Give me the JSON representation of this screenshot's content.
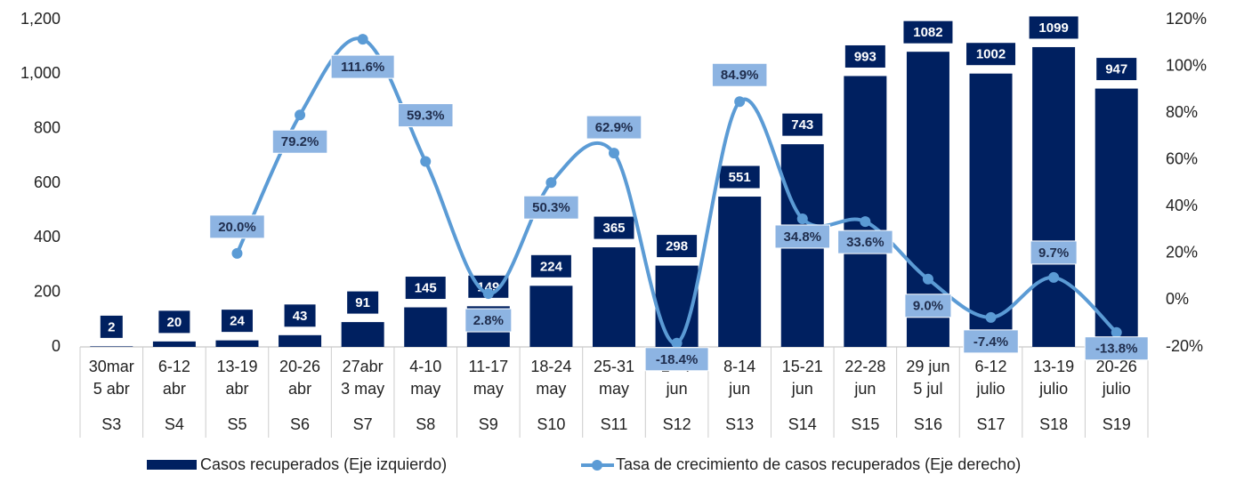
{
  "chart_data": {
    "type": "bar_line",
    "categories": [
      [
        "30mar",
        "5 abr"
      ],
      [
        "6-12",
        "abr"
      ],
      [
        "13-19",
        "abr"
      ],
      [
        "20-26",
        "abr"
      ],
      [
        "27abr",
        "3 may"
      ],
      [
        "4-10",
        "may"
      ],
      [
        "11-17",
        "may"
      ],
      [
        "18-24",
        "may"
      ],
      [
        "25-31",
        "may"
      ],
      [
        "1 - 7",
        "jun"
      ],
      [
        "8-14",
        "jun"
      ],
      [
        "15-21",
        "jun"
      ],
      [
        "22-28",
        "jun"
      ],
      [
        "29 jun",
        "5 jul"
      ],
      [
        "6-12",
        "julio"
      ],
      [
        "13-19",
        "julio"
      ],
      [
        "20-26",
        "julio"
      ]
    ],
    "weeks": [
      "S3",
      "S4",
      "S5",
      "S6",
      "S7",
      "S8",
      "S9",
      "S10",
      "S11",
      "S12",
      "S13",
      "S14",
      "S15",
      "S16",
      "S17",
      "S18",
      "S19"
    ],
    "series": [
      {
        "name": "Casos recuperados (Eje izquierdo)",
        "type": "bar",
        "color": "#002060",
        "values": [
          2,
          20,
          24,
          43,
          91,
          145,
          149,
          224,
          365,
          298,
          551,
          743,
          993,
          1082,
          1002,
          1099,
          947
        ]
      },
      {
        "name": "Tasa de crecimiento de casos recuperados (Eje derecho)",
        "type": "line",
        "axis": "y2",
        "color": "#5b9bd5",
        "label_color": "#8db4e2",
        "values": [
          null,
          null,
          20.0,
          79.2,
          111.6,
          59.3,
          2.8,
          50.3,
          62.9,
          -18.4,
          84.9,
          34.8,
          33.6,
          9.0,
          -7.4,
          9.7,
          -13.8
        ],
        "value_labels": [
          null,
          null,
          "20.0%",
          "79.2%",
          "111.6%",
          "59.3%",
          "2.8%",
          "50.3%",
          "62.9%",
          "-18.4%",
          "84.9%",
          "34.8%",
          "33.6%",
          "9.0%",
          "-7.4%",
          "9.7%",
          "-13.8%"
        ]
      }
    ],
    "ylim": [
      0,
      1200
    ],
    "yticks": [
      0,
      200,
      400,
      600,
      800,
      {
        "value": 1000,
        "label": "1,000"
      },
      {
        "value": 1200,
        "label": "1,200"
      }
    ],
    "y2lim": [
      -20,
      120
    ],
    "y2ticks": [
      {
        "value": -20,
        "label": "-20%"
      },
      {
        "value": 0,
        "label": "0%"
      },
      {
        "value": 20,
        "label": "20%"
      },
      {
        "value": 40,
        "label": "40%"
      },
      {
        "value": 60,
        "label": "60%"
      },
      {
        "value": 80,
        "label": "80%"
      },
      {
        "value": 100,
        "label": "100%"
      },
      {
        "value": 120,
        "label": "120%"
      }
    ]
  }
}
